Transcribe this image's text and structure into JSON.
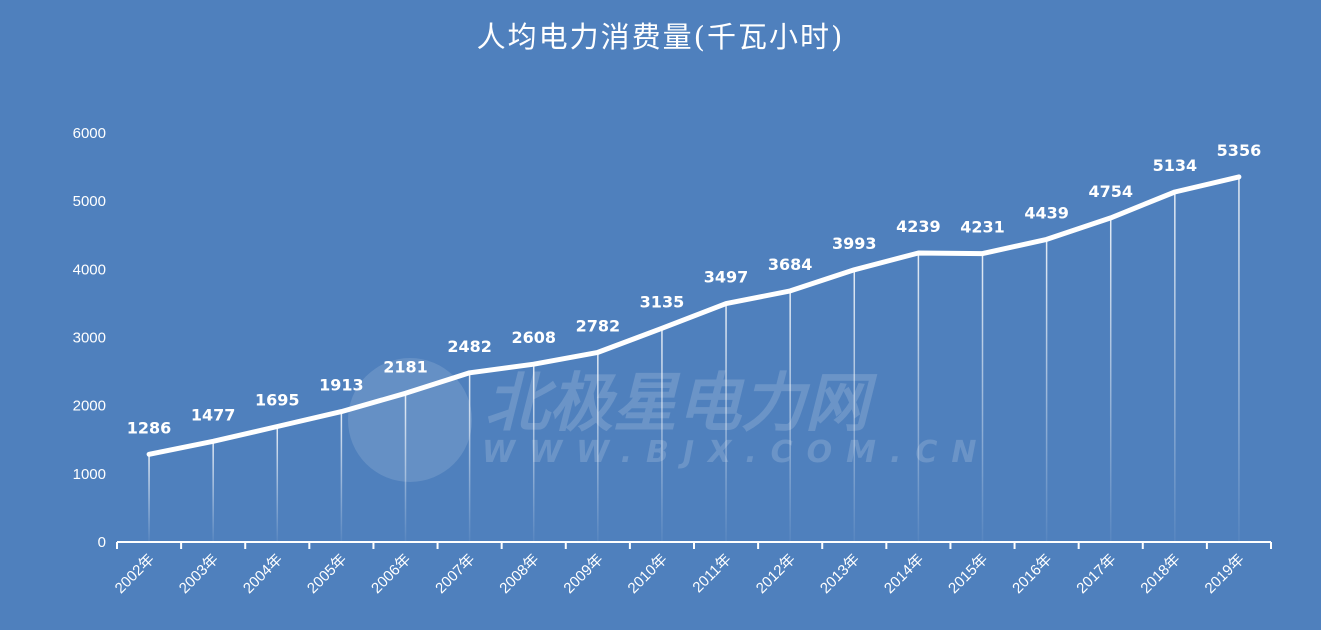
{
  "title": "人均电力消费量(千瓦小时)",
  "watermark": {
    "chinese": "北极星电力网",
    "url": "WWW.BJX.COM.CN"
  },
  "colors": {
    "background": "#4f80bd",
    "line": "#ffffff",
    "text": "#ffffff"
  },
  "chart_data": {
    "type": "line",
    "title": "人均电力消费量(千瓦小时)",
    "xlabel": "",
    "ylabel": "",
    "ylim": [
      0,
      6000
    ],
    "yticks": [
      0,
      1000,
      2000,
      3000,
      4000,
      5000,
      6000
    ],
    "grid": false,
    "legend": "none",
    "categories": [
      "2002年",
      "2003年",
      "2004年",
      "2005年",
      "2006年",
      "2007年",
      "2008年",
      "2009年",
      "2010年",
      "2011年",
      "2012年",
      "2013年",
      "2014年",
      "2015年",
      "2016年",
      "2017年",
      "2018年",
      "2019年"
    ],
    "series": [
      {
        "name": "人均电力消费量",
        "values": [
          1286,
          1477,
          1695,
          1913,
          2181,
          2482,
          2608,
          2782,
          3135,
          3497,
          3684,
          3993,
          4239,
          4231,
          4439,
          4754,
          5134,
          5356
        ]
      }
    ],
    "data_labels": true,
    "drop_lines": true
  }
}
